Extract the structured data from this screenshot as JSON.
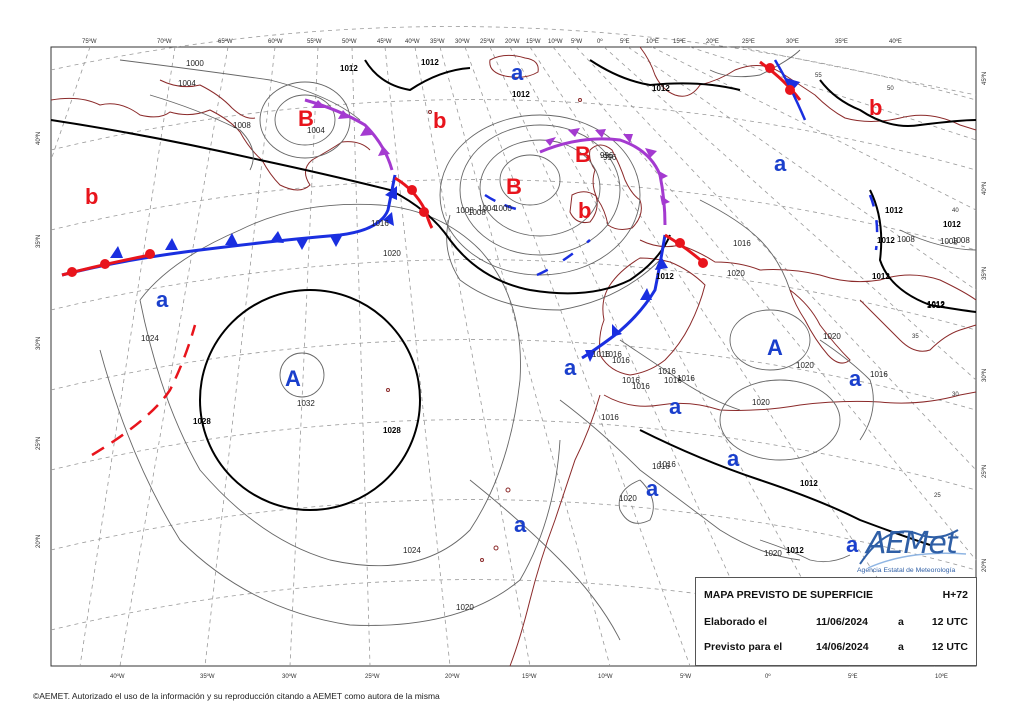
{
  "map": {
    "frame_color": "#333333",
    "coast_color": "#8b2a2a",
    "grid_color": "#9a9a9a",
    "isobar_color": "#666666",
    "top_lon_labels": [
      "75ºW",
      "70ºW",
      "65ºW",
      "60ºW",
      "55ºW",
      "50ºW",
      "45ºW",
      "40ºW",
      "35ºW",
      "30ºW",
      "25ºW",
      "20ºW",
      "15ºW",
      "10ºW",
      "5ºW",
      "0º",
      "5ºE",
      "10ºE",
      "15ºE",
      "20ºE",
      "25ºE",
      "30ºE",
      "35ºE",
      "40ºE"
    ],
    "bottom_lon_labels": [
      "40ºW",
      "35ºW",
      "30ºW",
      "25ºW",
      "20ºW",
      "15ºW",
      "10ºW",
      "5ºW",
      "0º",
      "5ºE",
      "10ºE"
    ],
    "left_lat_labels": [
      "40ºN",
      "35ºN",
      "30ºN",
      "25ºN",
      "20ºN"
    ],
    "right_lat_labels": [
      "45ºN",
      "40ºN",
      "35ºN",
      "30ºN",
      "25ºN",
      "20ºN"
    ],
    "inner_lat_labels": [
      "55",
      "50",
      "40",
      "35",
      "30",
      "25"
    ],
    "isobar_labels": [
      "1000",
      "1004",
      "1008",
      "1012",
      "1012",
      "1012",
      "1004",
      "1008",
      "1016",
      "1016",
      "1020",
      "1020",
      "1024",
      "1024",
      "1020",
      "1028",
      "1028",
      "1032",
      "996",
      "996",
      "1000",
      "1004",
      "1008",
      "1012",
      "1012",
      "1012",
      "1016",
      "1016",
      "1016",
      "1016",
      "1016",
      "1016",
      "1016",
      "1016",
      "1016",
      "1016",
      "1020",
      "1020",
      "1020",
      "1020",
      "1012",
      "1012",
      "1008",
      "1012",
      "1012",
      "1008",
      "1012",
      "1020",
      "1016",
      "1016",
      "1008",
      "1012",
      "1012"
    ],
    "pressure_centers": [
      {
        "label": "B",
        "type": "low"
      },
      {
        "label": "b",
        "type": "low"
      },
      {
        "label": "b",
        "type": "low"
      },
      {
        "label": "B",
        "type": "low"
      },
      {
        "label": "B",
        "type": "low"
      },
      {
        "label": "b",
        "type": "low"
      },
      {
        "label": "b",
        "type": "low"
      },
      {
        "label": "a",
        "type": "high"
      },
      {
        "label": "a",
        "type": "high"
      },
      {
        "label": "A",
        "type": "high"
      },
      {
        "label": "a",
        "type": "high"
      },
      {
        "label": "A",
        "type": "high"
      },
      {
        "label": "a",
        "type": "high"
      },
      {
        "label": "a",
        "type": "high"
      },
      {
        "label": "a",
        "type": "high"
      },
      {
        "label": "a",
        "type": "high"
      },
      {
        "label": "a",
        "type": "high"
      },
      {
        "label": "a",
        "type": "high"
      },
      {
        "label": "a",
        "type": "high"
      }
    ],
    "low_color": "#e8141c",
    "high_color": "#1a3fcc",
    "front_colors": {
      "cold": "#1a2fe0",
      "warm": "#e8141c",
      "occluded": "#a43ad0"
    }
  },
  "legend": {
    "title": "MAPA PREVISTO DE SUPERFICIE",
    "horizon": "H+72",
    "row1_label": "Elaborado el",
    "row1_date": "11/06/2024",
    "row1_a": "a",
    "row1_time": "12 UTC",
    "row2_label": "Previsto para el",
    "row2_date": "14/06/2024",
    "row2_a": "a",
    "row2_time": "12 UTC"
  },
  "logo": {
    "name": "AEMet",
    "subtitle": "Agencia Estatal de Meteorología",
    "color": "#2f5fa6"
  },
  "credit": "©AEMET. Autorizado el uso de la información y su reproducción citando a AEMET como autora de la misma"
}
